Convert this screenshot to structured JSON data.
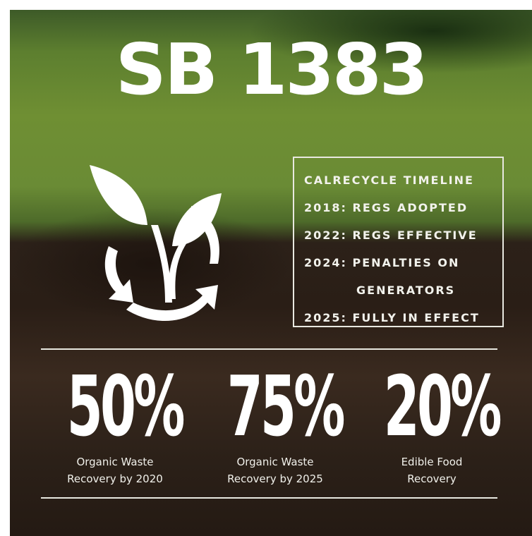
{
  "title": "SB 1383",
  "timeline": {
    "heading": "CALRECYCLE TIMELINE",
    "items": [
      "2018: REGS ADOPTED",
      "2022: REGS EFFECTIVE",
      "2024: PENALTIES ON GENERATORS",
      "2025: FULLY IN EFFECT"
    ]
  },
  "stats": [
    {
      "value": "50%",
      "label": "Organic Waste Recovery by 2020"
    },
    {
      "value": "75%",
      "label": "Organic Waste Recovery by 2025"
    },
    {
      "value": "20%",
      "label": "Edible Food Recovery"
    }
  ]
}
